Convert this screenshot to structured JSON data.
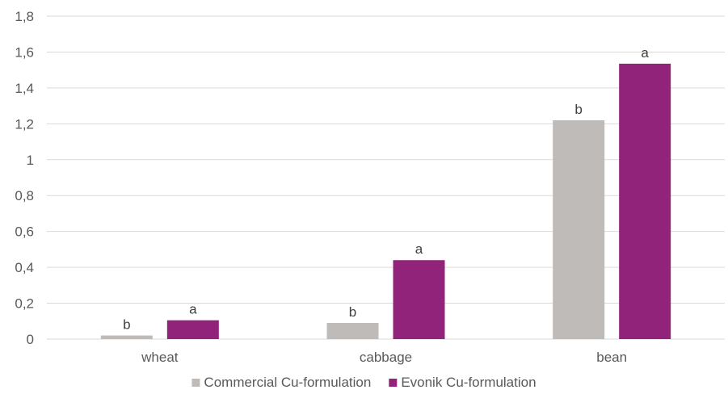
{
  "chart_data": {
    "type": "bar",
    "title": "",
    "xlabel": "",
    "ylabel": "",
    "categories": [
      "wheat",
      "cabbage",
      "bean"
    ],
    "ylim": [
      0,
      1.8
    ],
    "yticks": [
      "0",
      "0,2",
      "0,4",
      "0,6",
      "0,8",
      "1",
      "1,2",
      "1,4",
      "1,6",
      "1,8"
    ],
    "grid": true,
    "legend_position": "bottom",
    "series": [
      {
        "name": "Commercial Cu-formulation",
        "color": "#bfbbb8",
        "values": [
          0.02,
          0.09,
          1.22
        ],
        "labels": [
          "b",
          "b",
          "b"
        ]
      },
      {
        "name": "Evonik Cu-formulation",
        "color": "#92237a",
        "values": [
          0.105,
          0.44,
          1.535
        ],
        "labels": [
          "a",
          "a",
          "a"
        ]
      }
    ]
  }
}
